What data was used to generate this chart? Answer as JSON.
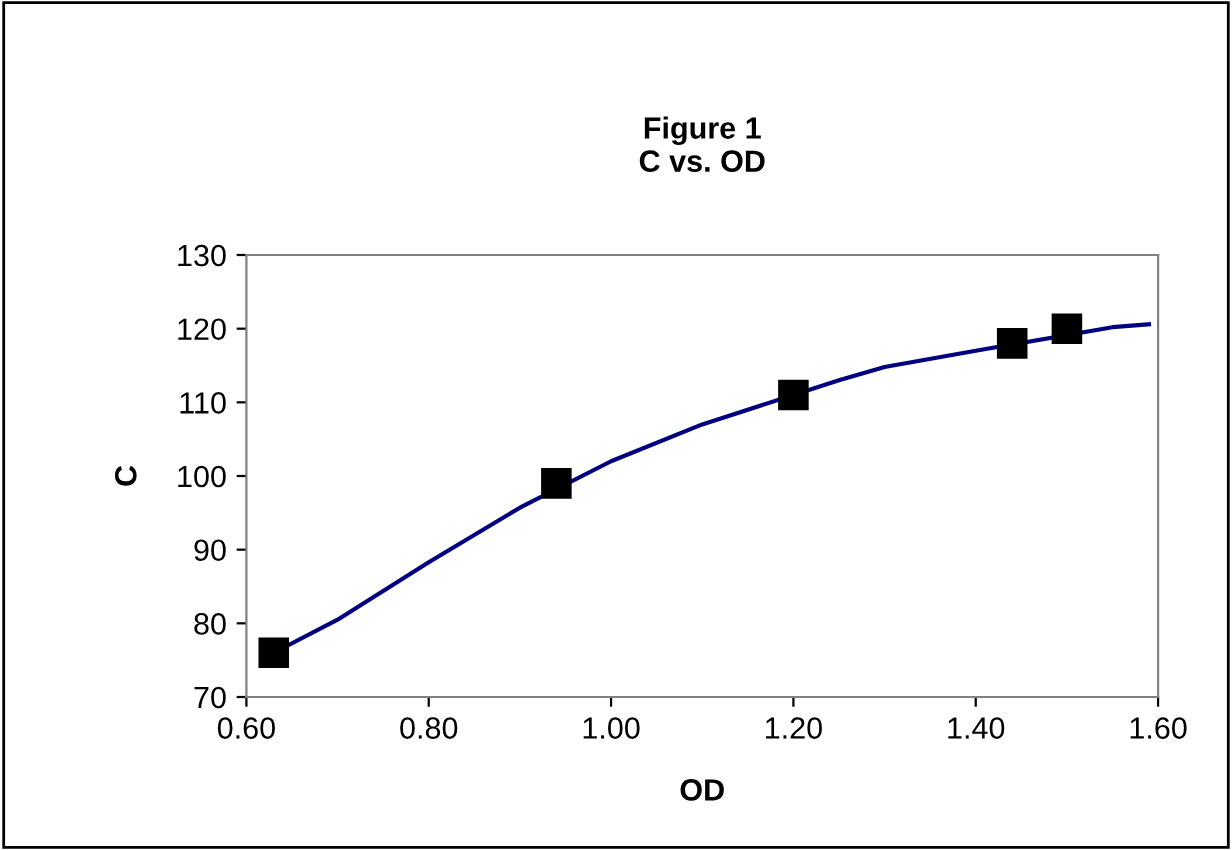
{
  "chart_data": {
    "type": "scatter",
    "title": "Figure 1\nC vs. OD",
    "xlabel": "OD",
    "ylabel": "C",
    "xlim": [
      0.6,
      1.6
    ],
    "xticks": [
      {
        "value": 0.6,
        "label": "0.60"
      },
      {
        "value": 0.8,
        "label": "0.80"
      },
      {
        "value": 1.0,
        "label": "1.00"
      },
      {
        "value": 1.2,
        "label": "1.20"
      },
      {
        "value": 1.4,
        "label": "1.40"
      },
      {
        "value": 1.6,
        "label": "1.60"
      }
    ],
    "ylim": [
      70,
      130
    ],
    "yticks": [
      70,
      80,
      90,
      100,
      110,
      120,
      130
    ],
    "grid": false,
    "legend": false,
    "series": [
      {
        "type": "line",
        "color": "#000080",
        "marker": "none",
        "x": [
          0.63,
          0.7,
          0.8,
          0.9,
          1.0,
          1.1,
          1.25,
          1.3,
          1.4,
          1.55,
          1.59
        ],
        "values": [
          76,
          80.5,
          88.3,
          95.7,
          102,
          107,
          113,
          114.8,
          117,
          120.2,
          120.6
        ]
      },
      {
        "color": "#000000",
        "marker": "square",
        "x": [
          0.63,
          0.94,
          1.2,
          1.44,
          1.5
        ],
        "values": [
          76,
          99,
          111,
          118,
          120
        ]
      }
    ]
  }
}
